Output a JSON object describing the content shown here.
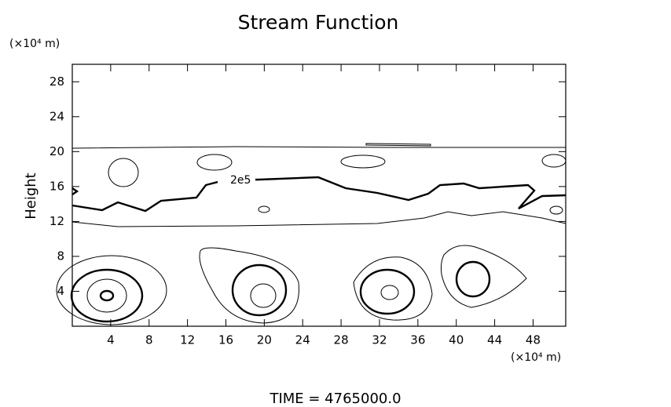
{
  "chart_data": {
    "type": "contour",
    "title": "Stream Function",
    "ylabel": "Height",
    "y_unit": "(×10⁴ m)",
    "x_unit": "(×10⁴ m)",
    "contour_label": "2e5",
    "footer": "TIME  =  4765000.0",
    "xlim": [
      0,
      51.4
    ],
    "ylim": [
      0,
      30
    ],
    "xticks": [
      4,
      8,
      12,
      16,
      20,
      24,
      28,
      32,
      36,
      40,
      44,
      48
    ],
    "yticks": [
      4,
      8,
      12,
      16,
      20,
      24,
      28
    ],
    "color": "#000000"
  }
}
